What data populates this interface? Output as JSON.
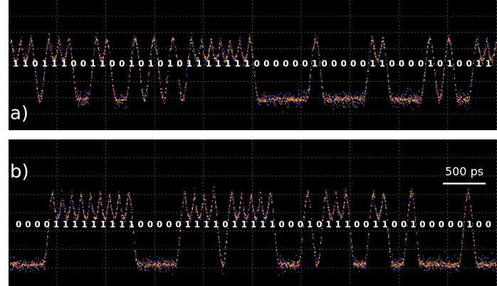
{
  "panels": [
    {
      "label": "a)",
      "bits": "1 1 0 1 1 1 0  0 1 1 0 0 1 0  1 0 1 0 1  1 1 1 1 1 1 0 0 0 0  0 0 1 0 0 0 0  0 1 1 0 0 0 0 1  0 1 0 0 1 1"
    },
    {
      "label": "b)",
      "bits": "0 0 0 0 1 1 1 1 1 1 1 1 1 0 0 0 0 0 1 1 1  1 0 1 1 1  1 1 0 0 0 1 0 1 1 1 0  0 1 1 0 0 1 0  0 0 0 0 1 0 0",
      "scale_bar": "500 ps"
    }
  ]
}
